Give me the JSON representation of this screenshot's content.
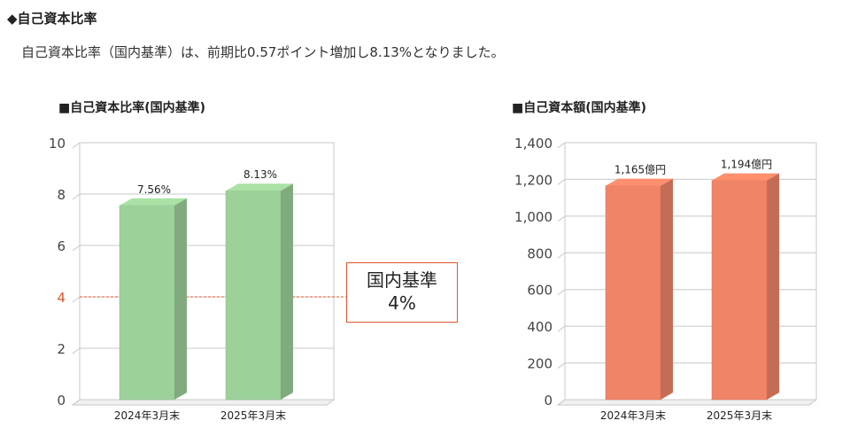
{
  "section": {
    "title": "◆自己資本比率",
    "description": "自己資本比率（国内基準）は、前期比0.57ポイント増加し8.13%となりました。"
  },
  "chart_data": [
    {
      "type": "bar",
      "title": "■自己資本比率(国内基準)",
      "categories": [
        "2024年3月末",
        "2025年3月末"
      ],
      "values": [
        7.56,
        8.13
      ],
      "value_labels": [
        "7.56%",
        "8.13%"
      ],
      "ylim": [
        0,
        10
      ],
      "yticks": [
        "0",
        "2",
        "4",
        "6",
        "8",
        "10"
      ],
      "ytick_values": [
        0,
        2,
        4,
        6,
        8,
        10
      ],
      "grid": true,
      "color": "#9dd19a",
      "reference_line": {
        "value": 4,
        "color": "#e0552e",
        "label_line1": "国内基準",
        "label_line2": "4%"
      }
    },
    {
      "type": "bar",
      "title": "■自己資本額(国内基準)",
      "categories": [
        "2024年3月末",
        "2025年3月末"
      ],
      "values": [
        1165,
        1194
      ],
      "value_labels": [
        "1,165億円",
        "1,194億円"
      ],
      "ylim": [
        0,
        1400
      ],
      "yticks": [
        "0",
        "200",
        "400",
        "600",
        "800",
        "1,000",
        "1,200",
        "1,400"
      ],
      "ytick_values": [
        0,
        200,
        400,
        600,
        800,
        1000,
        1200,
        1400
      ],
      "grid": true,
      "color": "#f08466"
    }
  ]
}
